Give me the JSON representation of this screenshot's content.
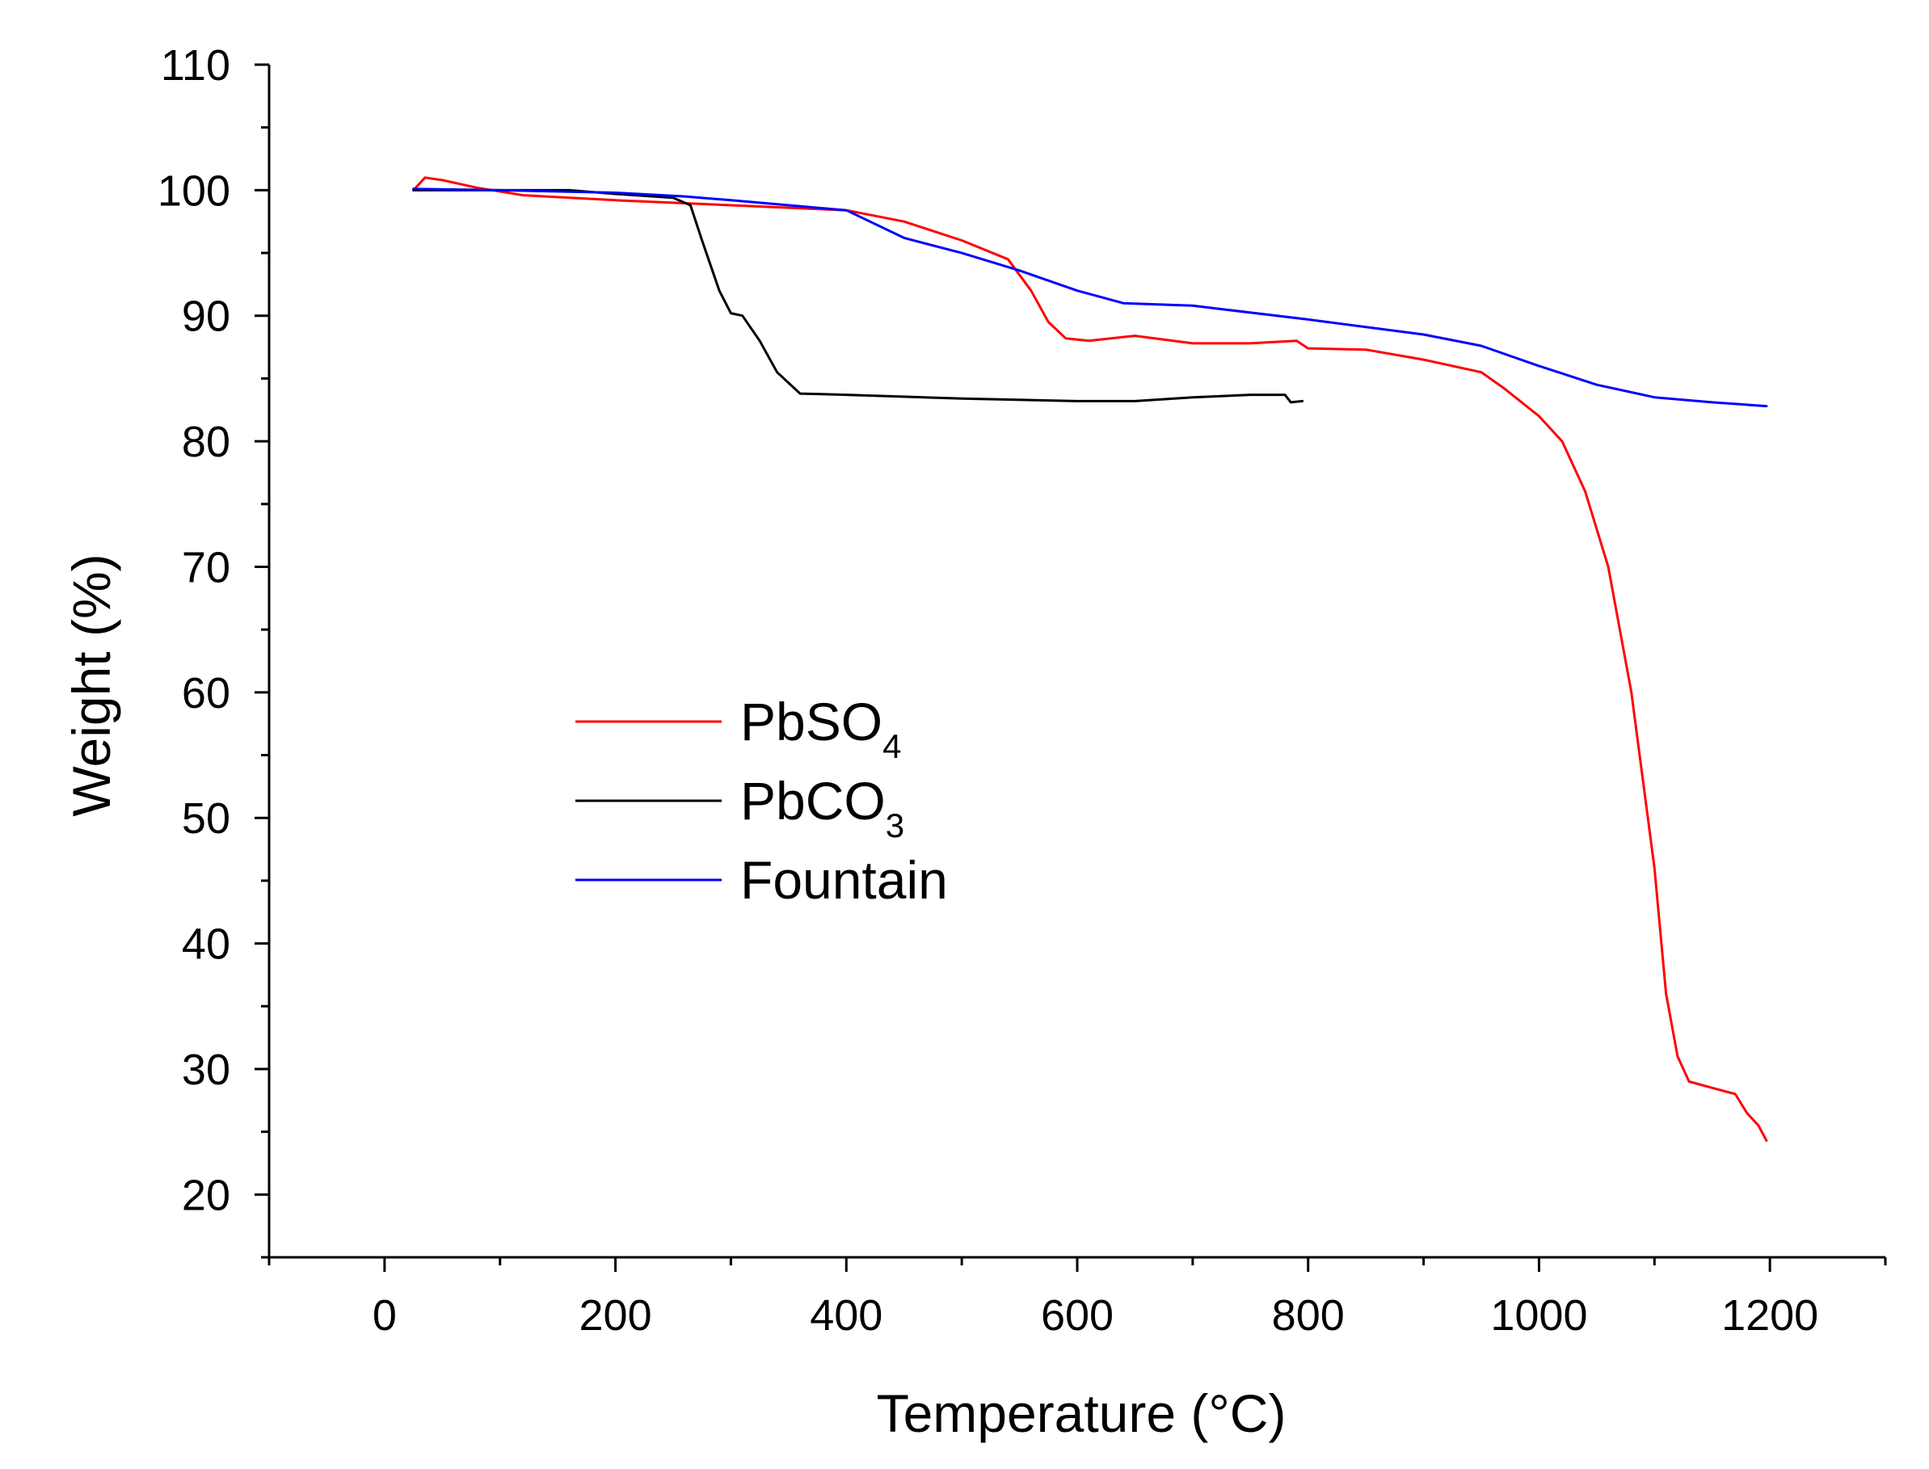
{
  "chart_data": {
    "type": "line",
    "title": "",
    "xlabel": "Temperature (°C)",
    "ylabel": "Weight (%)",
    "xlim": [
      -100,
      1300
    ],
    "ylim": [
      15,
      110
    ],
    "x_ticks": [
      0,
      200,
      400,
      600,
      800,
      1000,
      1200
    ],
    "y_ticks": [
      20,
      30,
      40,
      50,
      60,
      70,
      80,
      90,
      100,
      110
    ],
    "grid": false,
    "legend_position": "center-left",
    "series": [
      {
        "name": "PbSO4",
        "label_main": "PbSO",
        "label_sub": "4",
        "color": "#ff0000",
        "x": [
          25,
          35,
          50,
          80,
          120,
          200,
          250,
          300,
          350,
          400,
          450,
          500,
          540,
          560,
          575,
          590,
          610,
          650,
          700,
          750,
          790,
          800,
          850,
          900,
          950,
          970,
          1000,
          1020,
          1040,
          1060,
          1080,
          1100,
          1110,
          1120,
          1130,
          1150,
          1170,
          1180,
          1190,
          1197
        ],
        "y": [
          100,
          101,
          100.8,
          100.2,
          99.6,
          99.2,
          99.0,
          98.8,
          98.6,
          98.4,
          97.5,
          96.0,
          94.5,
          92.0,
          89.5,
          88.2,
          88.0,
          88.4,
          87.8,
          87.8,
          88.0,
          87.4,
          87.3,
          86.5,
          85.5,
          84.2,
          82.0,
          80.0,
          76.0,
          70.0,
          60.0,
          46.0,
          36.0,
          31.0,
          29.0,
          28.5,
          28.0,
          26.5,
          25.5,
          24.3
        ]
      },
      {
        "name": "PbCO3",
        "label_main": "PbCO",
        "label_sub": "3",
        "color": "#000000",
        "x": [
          25,
          100,
          160,
          200,
          250,
          265,
          275,
          290,
          300,
          310,
          325,
          340,
          360,
          400,
          500,
          600,
          650,
          700,
          750,
          780,
          785,
          795
        ],
        "y": [
          100,
          100,
          100,
          99.7,
          99.4,
          98.8,
          96.0,
          92.0,
          90.2,
          90.0,
          88.0,
          85.5,
          83.8,
          83.7,
          83.4,
          83.2,
          83.2,
          83.5,
          83.7,
          83.7,
          83.1,
          83.2
        ]
      },
      {
        "name": "Fountain",
        "label_main": "Fountain",
        "label_sub": "",
        "color": "#0000ff",
        "x": [
          25,
          100,
          200,
          260,
          300,
          400,
          450,
          500,
          550,
          600,
          640,
          700,
          800,
          900,
          950,
          1000,
          1050,
          1100,
          1150,
          1197
        ],
        "y": [
          100.1,
          100.0,
          99.8,
          99.5,
          99.2,
          98.4,
          96.2,
          95.0,
          93.6,
          92.0,
          91.0,
          90.8,
          89.7,
          88.5,
          87.6,
          86.0,
          84.5,
          83.5,
          83.1,
          82.8
        ]
      }
    ]
  }
}
